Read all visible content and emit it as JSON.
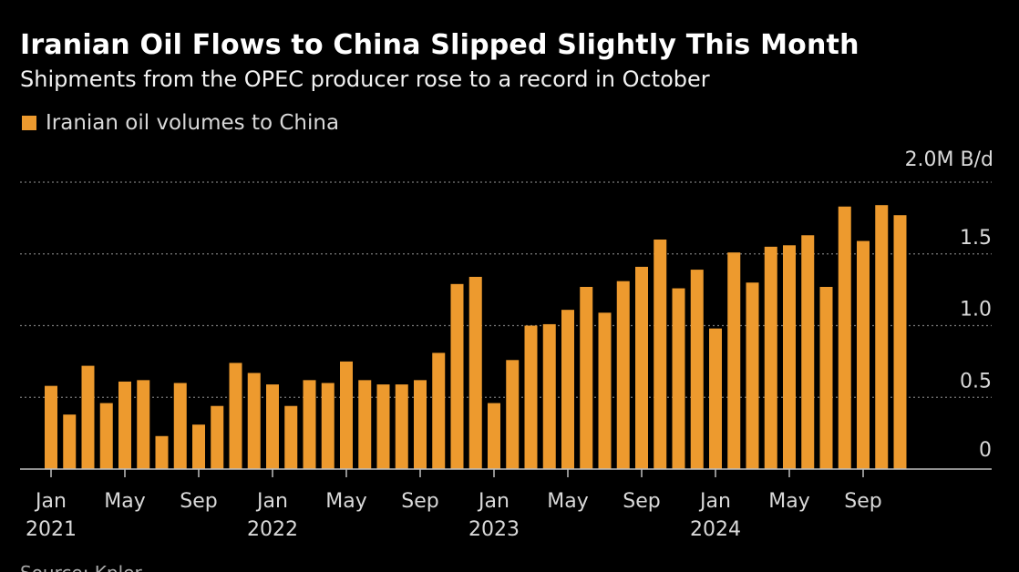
{
  "colors": {
    "background": "#000000",
    "bar": "#ED9A2E",
    "gridline": "#7a7a7a",
    "axis": "#bfbfbf",
    "text": "#ffffff",
    "muted_text": "#d9d9d9"
  },
  "header": {
    "title": "Iranian Oil Flows to China Slipped Slightly This Month",
    "subtitle": "Shipments from the OPEC producer rose to a record in October"
  },
  "legend": {
    "label": "Iranian oil volumes to China"
  },
  "footer": {
    "source": "Source: Kpler"
  },
  "chart_data": {
    "type": "bar",
    "title": "Iranian Oil Flows to China Slipped Slightly This Month",
    "subtitle": "Shipments from the OPEC producer rose to a record in October",
    "y_unit": "M B/d",
    "ylim": [
      0,
      2.0
    ],
    "y_ticks": [
      {
        "value": 0,
        "label": "0"
      },
      {
        "value": 0.5,
        "label": "0.5"
      },
      {
        "value": 1.0,
        "label": "1.0"
      },
      {
        "value": 1.5,
        "label": "1.5"
      },
      {
        "value": 2.0,
        "label": "2.0M B/d"
      }
    ],
    "grid": true,
    "legend_position": "top-left",
    "x_tick_labels": [
      {
        "index": 0,
        "month": "Jan",
        "year": "2021"
      },
      {
        "index": 4,
        "month": "May",
        "year": ""
      },
      {
        "index": 8,
        "month": "Sep",
        "year": ""
      },
      {
        "index": 12,
        "month": "Jan",
        "year": "2022"
      },
      {
        "index": 16,
        "month": "May",
        "year": ""
      },
      {
        "index": 20,
        "month": "Sep",
        "year": ""
      },
      {
        "index": 24,
        "month": "Jan",
        "year": "2023"
      },
      {
        "index": 28,
        "month": "May",
        "year": ""
      },
      {
        "index": 32,
        "month": "Sep",
        "year": ""
      },
      {
        "index": 36,
        "month": "Jan",
        "year": "2024"
      },
      {
        "index": 40,
        "month": "May",
        "year": ""
      },
      {
        "index": 44,
        "month": "Sep",
        "year": ""
      }
    ],
    "series": [
      {
        "name": "Iranian oil volumes to China",
        "categories": [
          "2021-01",
          "2021-02",
          "2021-03",
          "2021-04",
          "2021-05",
          "2021-06",
          "2021-07",
          "2021-08",
          "2021-09",
          "2021-10",
          "2021-11",
          "2021-12",
          "2022-01",
          "2022-02",
          "2022-03",
          "2022-04",
          "2022-05",
          "2022-06",
          "2022-07",
          "2022-08",
          "2022-09",
          "2022-10",
          "2022-11",
          "2022-12",
          "2023-01",
          "2023-02",
          "2023-03",
          "2023-04",
          "2023-05",
          "2023-06",
          "2023-07",
          "2023-08",
          "2023-09",
          "2023-10",
          "2023-11",
          "2023-12",
          "2024-01",
          "2024-02",
          "2024-03",
          "2024-04",
          "2024-05",
          "2024-06",
          "2024-07",
          "2024-08",
          "2024-09",
          "2024-10",
          "2024-11"
        ],
        "values": [
          0.58,
          0.38,
          0.72,
          0.46,
          0.61,
          0.62,
          0.23,
          0.6,
          0.31,
          0.44,
          0.74,
          0.67,
          0.59,
          0.44,
          0.62,
          0.6,
          0.75,
          0.62,
          0.59,
          0.59,
          0.62,
          0.81,
          1.29,
          1.34,
          0.46,
          0.76,
          1.0,
          1.01,
          1.11,
          1.27,
          1.09,
          1.31,
          1.41,
          1.6,
          1.26,
          1.39,
          0.98,
          1.51,
          1.3,
          1.55,
          1.56,
          1.63,
          1.27,
          1.83,
          1.59,
          1.84,
          1.77
        ]
      }
    ]
  }
}
